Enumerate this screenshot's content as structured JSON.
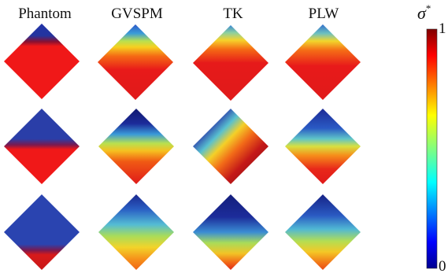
{
  "columns": [
    "Phantom",
    "GVSPM",
    "TK",
    "PLW"
  ],
  "colorbar": {
    "symbol": "σ",
    "sup": "*",
    "max_label": "1",
    "min_label": "0"
  },
  "colormap": "jet",
  "rows": 3
}
